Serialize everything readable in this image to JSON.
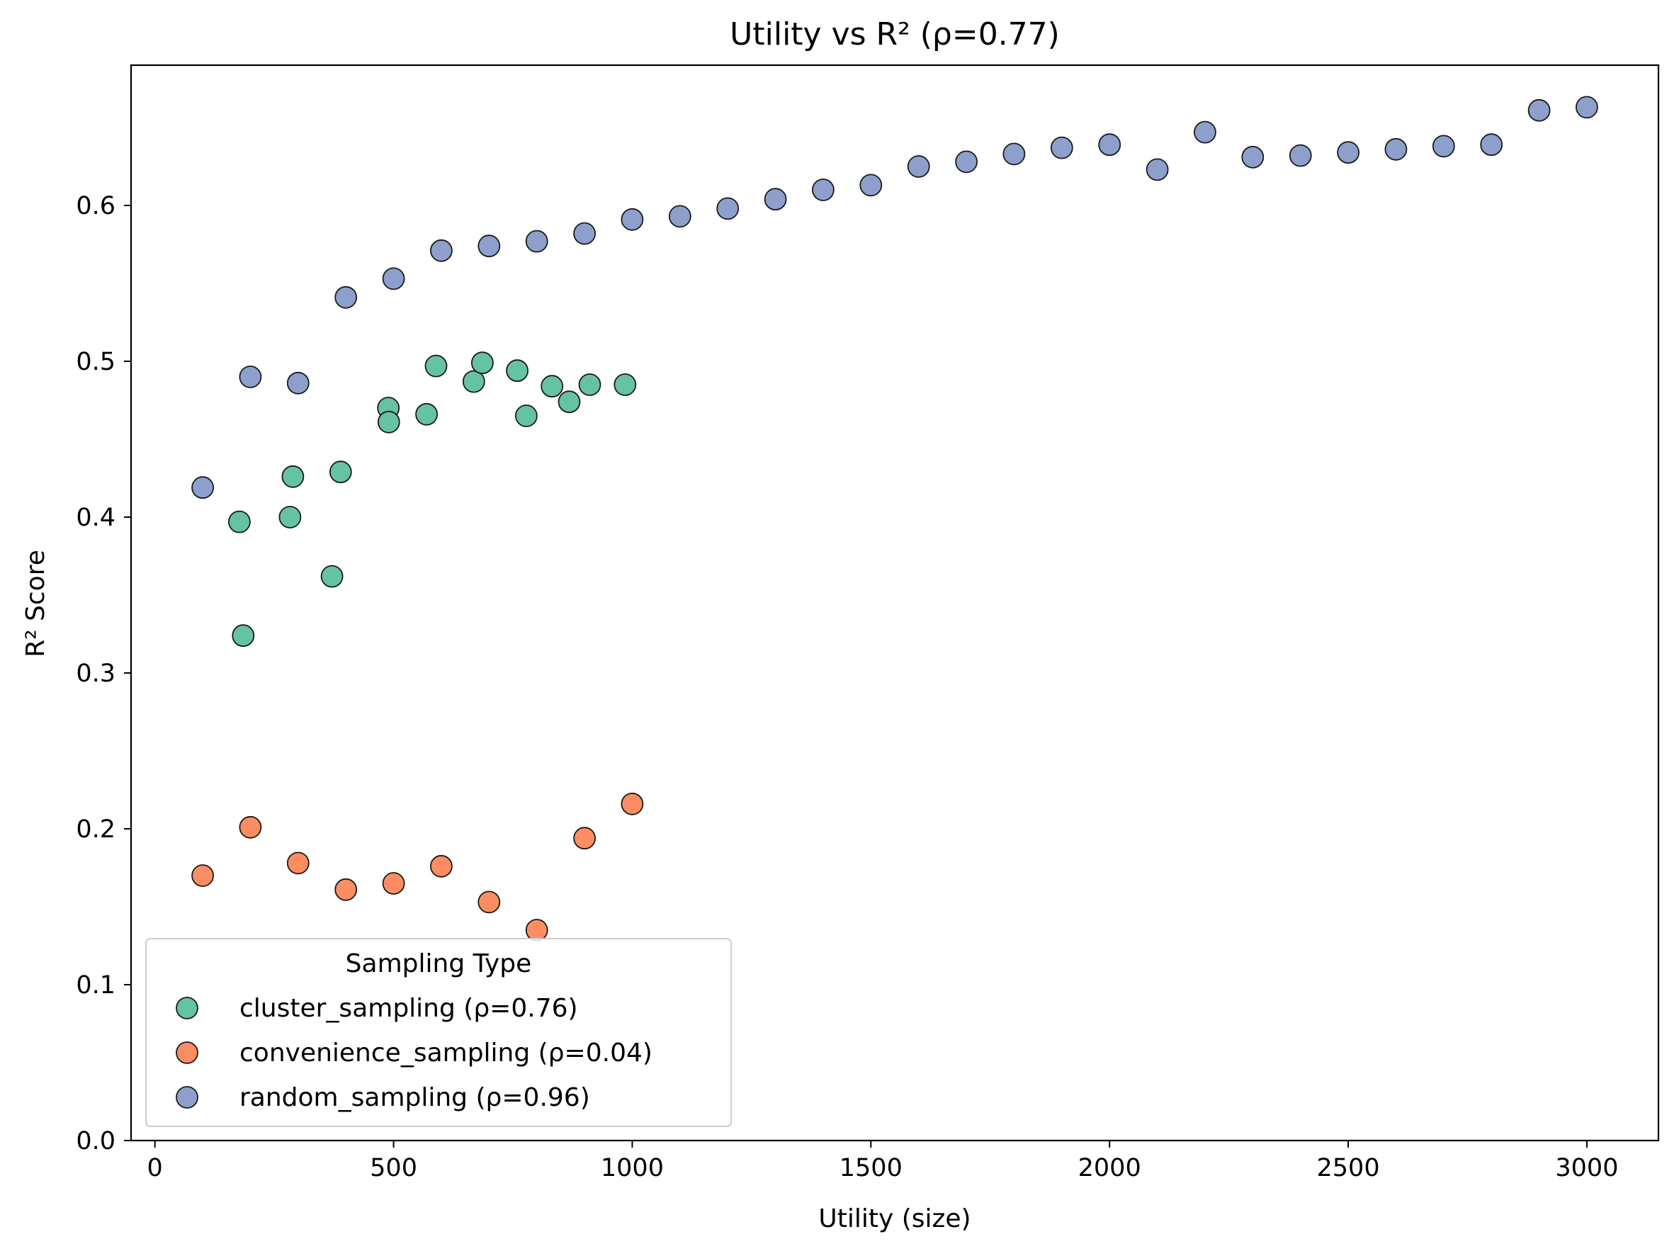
{
  "chart_data": {
    "type": "scatter",
    "title": "Utility vs R² (ρ=0.77)",
    "xlabel": "Utility (size)",
    "ylabel": "R² Score",
    "xlim": [
      -50,
      3150
    ],
    "ylim": [
      0.0,
      0.69
    ],
    "x_ticks": [
      0,
      500,
      1000,
      1500,
      2000,
      2500,
      3000
    ],
    "y_ticks": [
      0.0,
      0.1,
      0.2,
      0.3,
      0.4,
      0.5,
      0.6
    ],
    "grid": false,
    "legend": {
      "title": "Sampling Type",
      "placement": "lower-left"
    },
    "series": [
      {
        "name": "cluster_sampling (ρ=0.76)",
        "color": "#66c2a5",
        "points": [
          [
            177,
            0.397
          ],
          [
            185,
            0.324
          ],
          [
            283,
            0.4
          ],
          [
            289,
            0.426
          ],
          [
            371,
            0.362
          ],
          [
            389,
            0.429
          ],
          [
            489,
            0.47
          ],
          [
            490,
            0.461
          ],
          [
            569,
            0.466
          ],
          [
            589,
            0.497
          ],
          [
            668,
            0.487
          ],
          [
            686,
            0.499
          ],
          [
            759,
            0.494
          ],
          [
            778,
            0.465
          ],
          [
            832,
            0.484
          ],
          [
            868,
            0.474
          ],
          [
            911,
            0.485
          ],
          [
            985,
            0.485
          ]
        ]
      },
      {
        "name": "convenience_sampling (ρ=0.04)",
        "color": "#fc8d62",
        "points": [
          [
            100,
            0.17
          ],
          [
            200,
            0.201
          ],
          [
            300,
            0.178
          ],
          [
            400,
            0.161
          ],
          [
            500,
            0.165
          ],
          [
            600,
            0.176
          ],
          [
            700,
            0.153
          ],
          [
            800,
            0.135
          ],
          [
            900,
            0.194
          ],
          [
            1000,
            0.216
          ]
        ]
      },
      {
        "name": "random_sampling (ρ=0.96)",
        "color": "#8da0cb",
        "points": [
          [
            100,
            0.419
          ],
          [
            200,
            0.49
          ],
          [
            300,
            0.486
          ],
          [
            400,
            0.541
          ],
          [
            500,
            0.553
          ],
          [
            600,
            0.571
          ],
          [
            700,
            0.574
          ],
          [
            800,
            0.577
          ],
          [
            900,
            0.582
          ],
          [
            1000,
            0.591
          ],
          [
            1100,
            0.593
          ],
          [
            1200,
            0.598
          ],
          [
            1300,
            0.604
          ],
          [
            1400,
            0.61
          ],
          [
            1500,
            0.613
          ],
          [
            1600,
            0.625
          ],
          [
            1700,
            0.628
          ],
          [
            1800,
            0.633
          ],
          [
            1900,
            0.637
          ],
          [
            2000,
            0.639
          ],
          [
            2100,
            0.623
          ],
          [
            2200,
            0.647
          ],
          [
            2300,
            0.631
          ],
          [
            2400,
            0.632
          ],
          [
            2500,
            0.634
          ],
          [
            2600,
            0.636
          ],
          [
            2700,
            0.638
          ],
          [
            2800,
            0.639
          ],
          [
            2900,
            0.661
          ],
          [
            3000,
            0.663
          ]
        ]
      }
    ]
  }
}
